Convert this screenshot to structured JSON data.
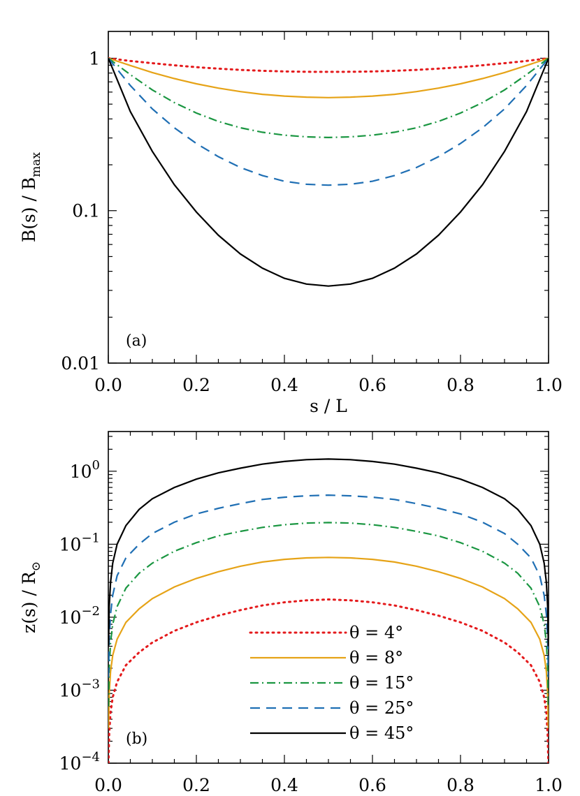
{
  "chart_data": [
    {
      "panel": "a",
      "type": "line",
      "panel_label": "(a)",
      "xlabel": "s / L",
      "ylabel_main": "B(s) / B",
      "ylabel_sub": "max",
      "x_scale": "linear",
      "y_scale": "log",
      "xlim": [
        0.0,
        1.0
      ],
      "ylim": [
        0.01,
        1.5
      ],
      "x_ticks": [
        0.0,
        0.2,
        0.4,
        0.6,
        0.8,
        1.0
      ],
      "x_tick_labels": [
        "0.0",
        "0.2",
        "0.4",
        "0.6",
        "0.8",
        "1.0"
      ],
      "y_ticks": [
        0.01,
        0.1,
        1
      ],
      "y_tick_labels": [
        "0.01",
        "0.1",
        "1"
      ],
      "grid": false,
      "x": [
        0.0,
        0.05,
        0.1,
        0.15,
        0.2,
        0.25,
        0.3,
        0.35,
        0.4,
        0.45,
        0.5,
        0.55,
        0.6,
        0.65,
        0.7,
        0.75,
        0.8,
        0.85,
        0.9,
        0.95,
        1.0
      ],
      "series": [
        {
          "label": "θ = 4°",
          "color": "#e41a1c",
          "dash": "dotted",
          "y": [
            1.0,
            0.96,
            0.928,
            0.899,
            0.874,
            0.855,
            0.839,
            0.827,
            0.82,
            0.815,
            0.814,
            0.815,
            0.82,
            0.827,
            0.839,
            0.855,
            0.874,
            0.899,
            0.928,
            0.96,
            1.0
          ]
        },
        {
          "label": "θ = 8°",
          "color": "#e6a317",
          "dash": "solid",
          "y": [
            1.0,
            0.896,
            0.806,
            0.736,
            0.68,
            0.637,
            0.604,
            0.58,
            0.565,
            0.556,
            0.552,
            0.556,
            0.565,
            0.58,
            0.604,
            0.637,
            0.68,
            0.736,
            0.806,
            0.896,
            1.0
          ]
        },
        {
          "label": "θ = 15°",
          "color": "#1a9641",
          "dash": "dashdot",
          "y": [
            1.0,
            0.781,
            0.62,
            0.512,
            0.437,
            0.385,
            0.35,
            0.327,
            0.313,
            0.305,
            0.302,
            0.305,
            0.313,
            0.327,
            0.35,
            0.385,
            0.437,
            0.512,
            0.62,
            0.781,
            1.0
          ]
        },
        {
          "label": "θ = 25°",
          "color": "#1f6fb4",
          "dash": "dashed",
          "y": [
            1.0,
            0.662,
            0.465,
            0.35,
            0.276,
            0.226,
            0.192,
            0.17,
            0.156,
            0.149,
            0.147,
            0.149,
            0.156,
            0.17,
            0.192,
            0.226,
            0.276,
            0.35,
            0.465,
            0.662,
            1.0
          ]
        },
        {
          "label": "θ = 45°",
          "color": "#000000",
          "dash": "solid",
          "y": [
            1.0,
            0.447,
            0.245,
            0.148,
            0.098,
            0.069,
            0.052,
            0.042,
            0.036,
            0.033,
            0.032,
            0.033,
            0.036,
            0.042,
            0.052,
            0.069,
            0.098,
            0.148,
            0.245,
            0.447,
            1.0
          ]
        }
      ]
    },
    {
      "panel": "b",
      "type": "line",
      "panel_label": "(b)",
      "xlabel": "",
      "ylabel_main": "z(s) / R",
      "ylabel_sub": "⊙",
      "x_scale": "linear",
      "y_scale": "log",
      "xlim": [
        0.0,
        1.0
      ],
      "ylim": [
        0.0001,
        3.5
      ],
      "x_ticks": [
        0.0,
        0.2,
        0.4,
        0.6,
        0.8,
        1.0
      ],
      "x_tick_labels": [
        "0.0",
        "0.2",
        "0.4",
        "0.6",
        "0.8",
        "1.0"
      ],
      "y_ticks": [
        0.0001,
        0.001,
        0.01,
        0.1,
        1
      ],
      "y_tick_base": "10",
      "y_tick_exponents": [
        "−4",
        "−3",
        "−2",
        "−1",
        "0"
      ],
      "grid": false,
      "legend_placement": "lower-center",
      "x": [
        0.0005,
        0.002,
        0.005,
        0.01,
        0.02,
        0.04,
        0.07,
        0.1,
        0.15,
        0.2,
        0.25,
        0.3,
        0.35,
        0.4,
        0.45,
        0.5,
        0.55,
        0.6,
        0.65,
        0.7,
        0.75,
        0.8,
        0.85,
        0.9,
        0.93,
        0.96,
        0.98,
        0.99,
        0.995,
        0.998,
        0.9995
      ],
      "series": [
        {
          "label": "θ = 4°",
          "color": "#e41a1c",
          "dash": "dotted",
          "y": [
            0.0001,
            0.00025,
            0.0005,
            0.0008,
            0.0013,
            0.0022,
            0.0033,
            0.0045,
            0.0065,
            0.0085,
            0.0105,
            0.0125,
            0.0145,
            0.016,
            0.017,
            0.0175,
            0.017,
            0.016,
            0.0145,
            0.0125,
            0.0105,
            0.0085,
            0.0065,
            0.0045,
            0.0033,
            0.0022,
            0.0013,
            0.0008,
            0.0005,
            0.00025,
            0.0001
          ]
        },
        {
          "label": "θ = 8°",
          "color": "#e6a317",
          "dash": "solid",
          "y": [
            0.0003,
            0.0009,
            0.0018,
            0.003,
            0.005,
            0.0085,
            0.013,
            0.018,
            0.026,
            0.034,
            0.042,
            0.05,
            0.057,
            0.062,
            0.065,
            0.066,
            0.065,
            0.062,
            0.057,
            0.05,
            0.042,
            0.034,
            0.026,
            0.018,
            0.013,
            0.0085,
            0.005,
            0.003,
            0.0018,
            0.0009,
            0.0003
          ]
        },
        {
          "label": "θ = 15°",
          "color": "#1a9641",
          "dash": "dashdot",
          "y": [
            0.0006,
            0.002,
            0.0045,
            0.008,
            0.014,
            0.025,
            0.04,
            0.055,
            0.08,
            0.105,
            0.13,
            0.15,
            0.17,
            0.185,
            0.195,
            0.198,
            0.195,
            0.185,
            0.17,
            0.15,
            0.13,
            0.105,
            0.08,
            0.055,
            0.04,
            0.025,
            0.014,
            0.008,
            0.0045,
            0.002,
            0.0006
          ]
        },
        {
          "label": "θ = 25°",
          "color": "#1f6fb4",
          "dash": "dashed",
          "y": [
            0.0015,
            0.005,
            0.011,
            0.02,
            0.037,
            0.065,
            0.1,
            0.14,
            0.2,
            0.26,
            0.31,
            0.36,
            0.41,
            0.44,
            0.46,
            0.47,
            0.46,
            0.44,
            0.41,
            0.36,
            0.31,
            0.26,
            0.2,
            0.14,
            0.1,
            0.065,
            0.037,
            0.02,
            0.011,
            0.005,
            0.0015
          ]
        },
        {
          "label": "θ = 45°",
          "color": "#000000",
          "dash": "solid",
          "y": [
            0.004,
            0.014,
            0.03,
            0.055,
            0.1,
            0.18,
            0.3,
            0.42,
            0.6,
            0.78,
            0.95,
            1.1,
            1.25,
            1.36,
            1.44,
            1.47,
            1.44,
            1.36,
            1.25,
            1.1,
            0.95,
            0.78,
            0.6,
            0.42,
            0.3,
            0.18,
            0.1,
            0.055,
            0.03,
            0.014,
            0.004
          ]
        }
      ]
    }
  ]
}
